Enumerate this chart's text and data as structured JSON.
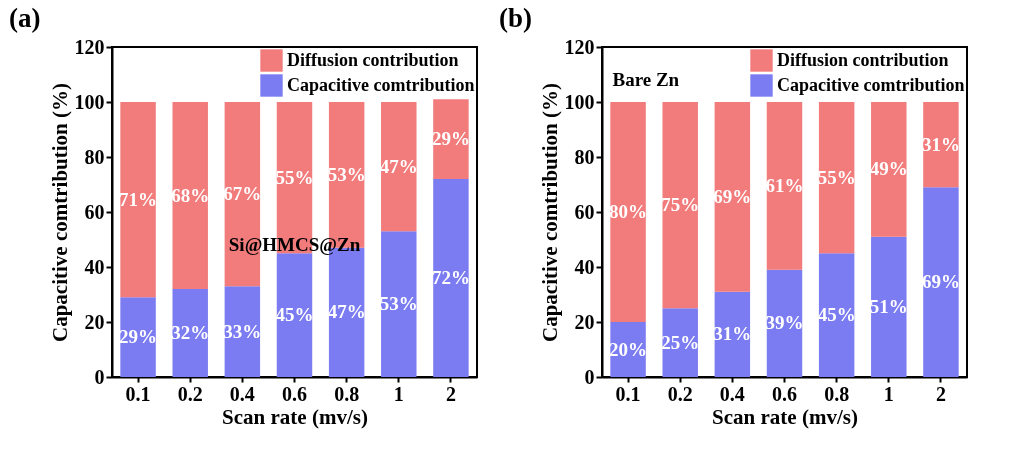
{
  "chart_data": [
    {
      "type": "bar",
      "title": "(a)",
      "xlabel": "Scan rate (mv/s)",
      "ylabel": "Capacitive comtribution (%)",
      "categories": [
        "0.1",
        "0.2",
        "0.4",
        "0.6",
        "0.8",
        "1",
        "2"
      ],
      "stacked": true,
      "ylim": [
        0,
        120
      ],
      "yticks": [
        0,
        20,
        40,
        60,
        80,
        100,
        120
      ],
      "legend": "top right",
      "annotations": [
        "Si@HMCS@Zn"
      ],
      "series": [
        {
          "name": "Capacitive comtribution",
          "color": "#7b7bf2",
          "values": [
            29,
            32,
            33,
            45,
            47,
            53,
            72
          ],
          "value_labels": [
            "29%",
            "32%",
            "33%",
            "45%",
            "47%",
            "53%",
            "72%"
          ]
        },
        {
          "name": "Diffusion contribution",
          "color": "#f27b7b",
          "values": [
            71,
            68,
            67,
            55,
            53,
            47,
            29
          ],
          "value_labels": [
            "71%",
            "68%",
            "67%",
            "55%",
            "53%",
            "47%",
            "29%"
          ]
        }
      ]
    },
    {
      "type": "bar",
      "title": "(b)",
      "xlabel": "Scan rate (mv/s)",
      "ylabel": "Capacitive comtribution (%)",
      "categories": [
        "0.1",
        "0.2",
        "0.4",
        "0.6",
        "0.8",
        "1",
        "2"
      ],
      "stacked": true,
      "ylim": [
        0,
        120
      ],
      "yticks": [
        0,
        20,
        40,
        60,
        80,
        100,
        120
      ],
      "legend": "top right",
      "annotations": [
        "Bare Zn"
      ],
      "series": [
        {
          "name": "Capacitive comtribution",
          "color": "#7b7bf2",
          "values": [
            20,
            25,
            31,
            39,
            45,
            51,
            69
          ],
          "value_labels": [
            "20%",
            "25%",
            "31%",
            "39%",
            "45%",
            "51%",
            "69%"
          ]
        },
        {
          "name": "Diffusion contribution",
          "color": "#f27b7b",
          "values": [
            80,
            75,
            69,
            61,
            55,
            49,
            31
          ],
          "value_labels": [
            "80%",
            "75%",
            "69%",
            "61%",
            "55%",
            "49%",
            "31%"
          ]
        }
      ]
    }
  ]
}
